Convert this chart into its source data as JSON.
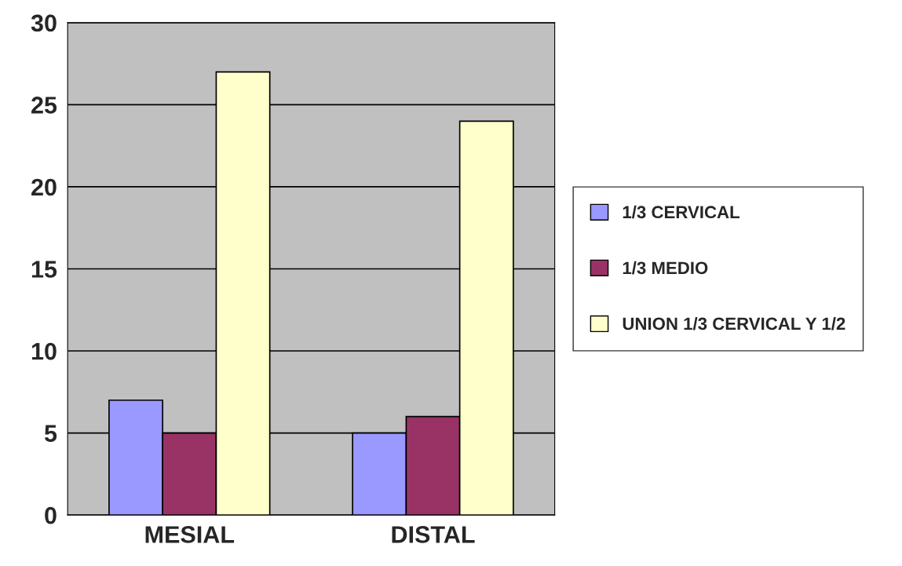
{
  "chart_data": {
    "type": "bar",
    "categories": [
      "MESIAL",
      "DISTAL"
    ],
    "series": [
      {
        "name": "1/3 CERVICAL",
        "color": "#9999ff",
        "values": [
          7,
          5
        ]
      },
      {
        "name": "1/3 MEDIO",
        "color": "#993366",
        "values": [
          5,
          6
        ]
      },
      {
        "name": "UNION 1/3 CERVICAL Y 1/2",
        "color": "#ffffcc",
        "values": [
          27,
          24
        ]
      }
    ],
    "ylim": [
      0,
      30
    ],
    "yticks": [
      0,
      5,
      10,
      15,
      20,
      25,
      30
    ],
    "grid": "y",
    "legend": "right"
  }
}
